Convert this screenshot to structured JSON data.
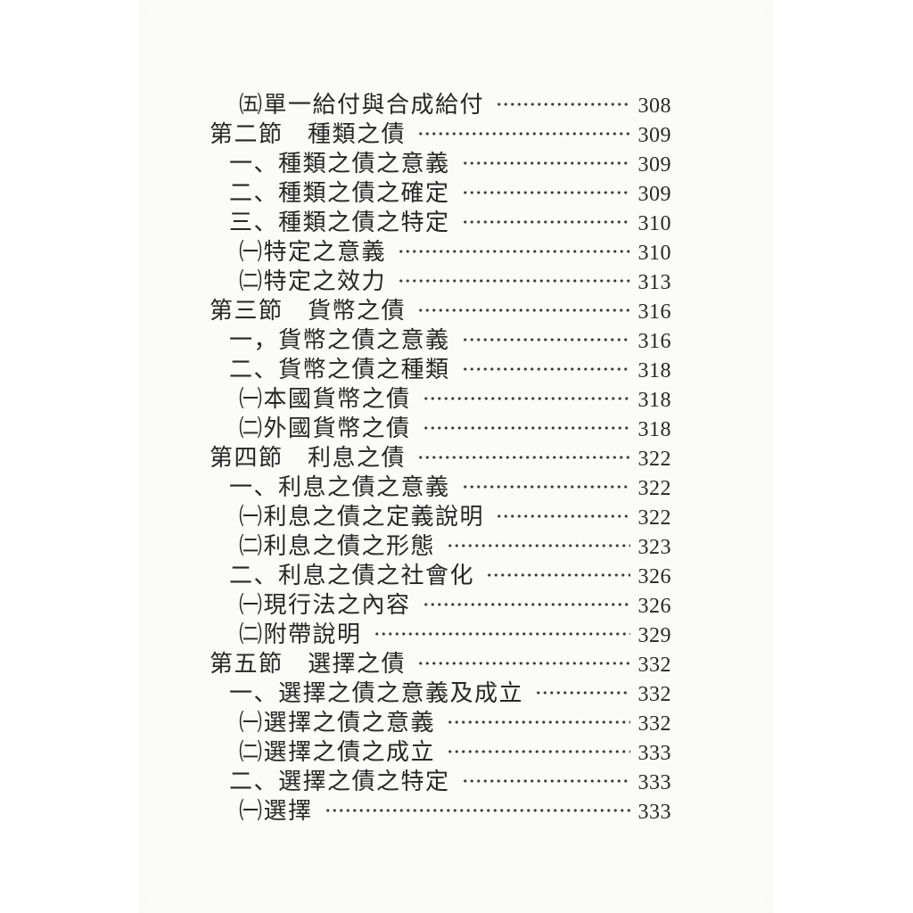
{
  "page": {
    "kind": "book-table-of-contents-scan",
    "language": "zh-Hant",
    "colors": {
      "background": "#ffffff",
      "paper": "#fbfbf9",
      "text": "#262626",
      "dots": "#3a3a3a"
    }
  },
  "toc": {
    "entries": [
      {
        "level": "sub",
        "label": "㈤單一給付與合成給付",
        "page": "308"
      },
      {
        "level": "section",
        "label": "第二節　種類之債",
        "page": "309"
      },
      {
        "level": "item",
        "label": "一、種類之債之意義",
        "page": "309"
      },
      {
        "level": "item",
        "label": "二、種類之債之確定",
        "page": "309"
      },
      {
        "level": "item",
        "label": "三、種類之債之特定",
        "page": "310"
      },
      {
        "level": "sub",
        "label": "㈠特定之意義",
        "page": "310"
      },
      {
        "level": "sub",
        "label": "㈡特定之效力",
        "page": "313"
      },
      {
        "level": "section",
        "label": "第三節　貨幣之債",
        "page": "316"
      },
      {
        "level": "item",
        "label": "一，貨幣之債之意義",
        "page": "316"
      },
      {
        "level": "item",
        "label": "二、貨幣之債之種類",
        "page": "318"
      },
      {
        "level": "sub",
        "label": "㈠本國貨幣之債",
        "page": "318"
      },
      {
        "level": "sub",
        "label": "㈡外國貨幣之債",
        "page": "318"
      },
      {
        "level": "section",
        "label": "第四節　利息之債",
        "page": "322"
      },
      {
        "level": "item",
        "label": "一、利息之債之意義",
        "page": "322"
      },
      {
        "level": "sub",
        "label": "㈠利息之債之定義說明",
        "page": "322"
      },
      {
        "level": "sub",
        "label": "㈡利息之債之形態",
        "page": "323"
      },
      {
        "level": "item",
        "label": "二、利息之債之社會化",
        "page": "326"
      },
      {
        "level": "sub",
        "label": "㈠現行法之內容",
        "page": "326"
      },
      {
        "level": "sub",
        "label": "㈡附帶說明",
        "page": "329"
      },
      {
        "level": "section",
        "label": "第五節　選擇之債",
        "page": "332"
      },
      {
        "level": "item",
        "label": "一、選擇之債之意義及成立",
        "page": "332"
      },
      {
        "level": "sub",
        "label": "㈠選擇之債之意義",
        "page": "332"
      },
      {
        "level": "sub",
        "label": "㈡選擇之債之成立",
        "page": "333"
      },
      {
        "level": "item",
        "label": "二、選擇之債之特定",
        "page": "333"
      },
      {
        "level": "sub",
        "label": "㈠選擇",
        "page": "333"
      }
    ]
  }
}
